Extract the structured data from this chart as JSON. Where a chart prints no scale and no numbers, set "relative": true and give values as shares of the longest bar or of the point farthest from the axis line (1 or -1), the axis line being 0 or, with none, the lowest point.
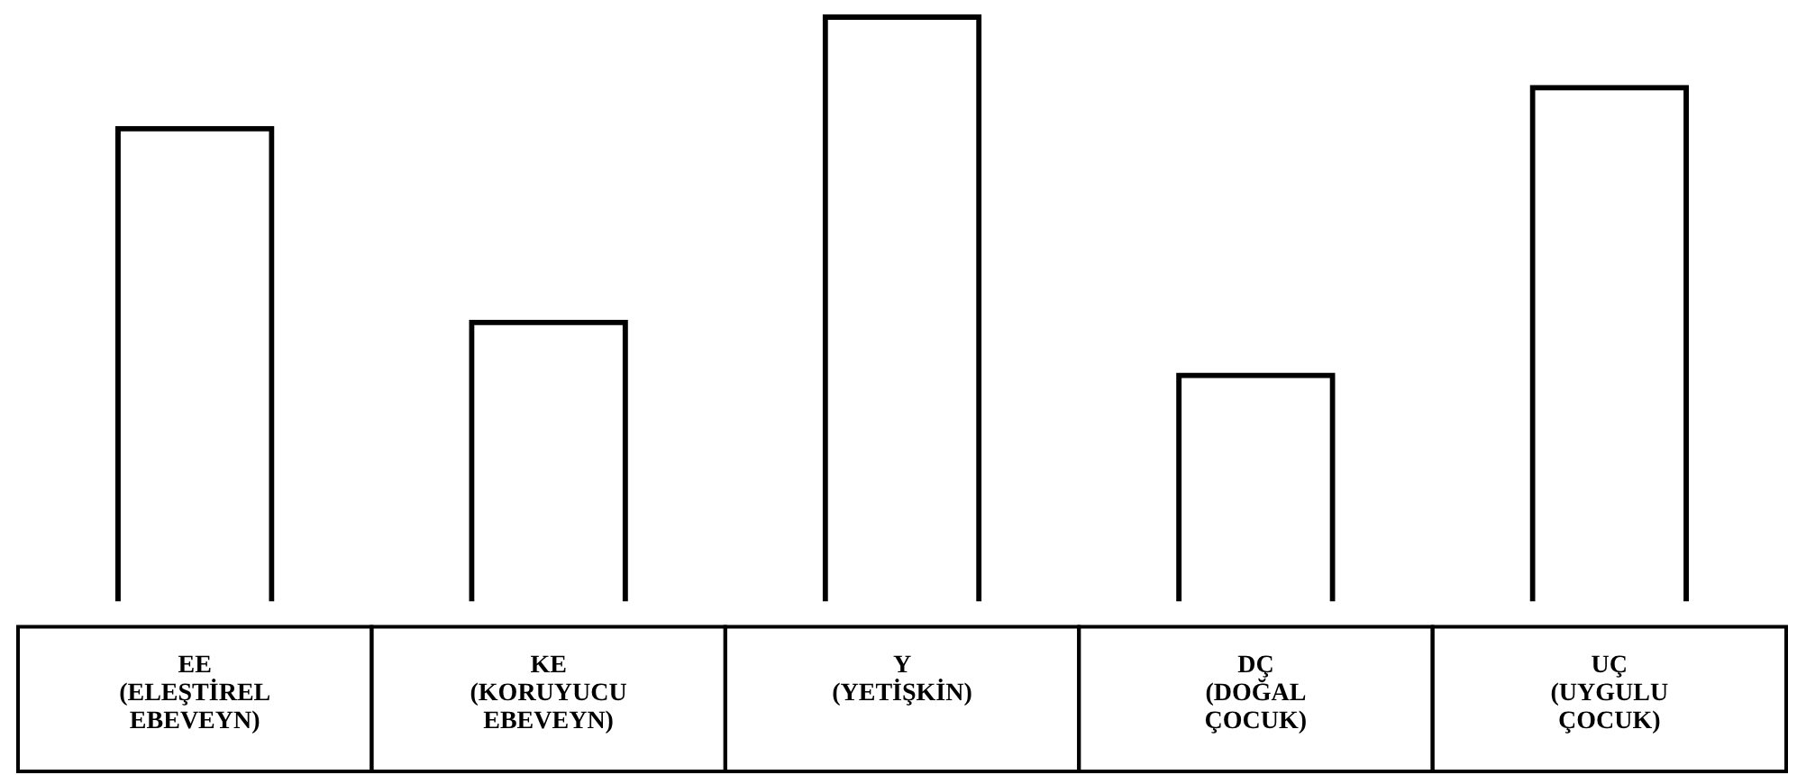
{
  "chart_data": {
    "type": "bar",
    "relative": true,
    "categories": [
      "EE\n(ELEŞTİREL\nEBEVEYN)",
      "KE\n(KORUYUCU\nEBEVEYN)",
      "Y\n(YETİŞKİN)",
      "DÇ\n(DOĞAL\nÇOCUK)",
      "UÇ\n(UYGULU\nÇOCUK)"
    ],
    "values": [
      0.81,
      0.48,
      1,
      0.39,
      0.88
    ],
    "color": "#000000",
    "grid": false,
    "legend": false
  }
}
